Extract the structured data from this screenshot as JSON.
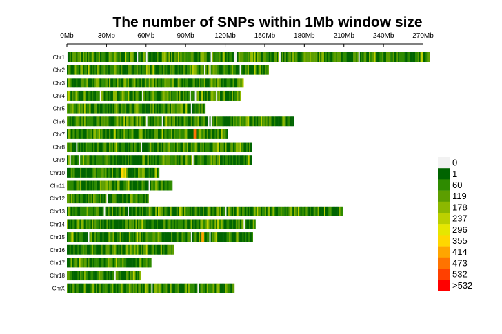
{
  "chart_data": {
    "type": "heatmap",
    "title": "The number of SNPs within 1Mb window size",
    "x_axis": {
      "unit": "Mb",
      "range": [
        0,
        280
      ],
      "ticks": [
        0,
        30,
        60,
        90,
        120,
        150,
        180,
        210,
        240,
        270
      ],
      "tick_labels": [
        "0Mb",
        "30Mb",
        "60Mb",
        "90Mb",
        "120Mb",
        "150Mb",
        "180Mb",
        "210Mb",
        "240Mb",
        "270Mb"
      ]
    },
    "chromosomes": [
      {
        "name": "Chr1",
        "length_mb": 275,
        "hotspots_mb": [
          268,
          269
        ],
        "peak_level": 5
      },
      {
        "name": "Chr2",
        "length_mb": 153,
        "hotspots_mb": [],
        "peak_level": 3
      },
      {
        "name": "Chr3",
        "length_mb": 134,
        "hotspots_mb": [],
        "peak_level": 3
      },
      {
        "name": "Chr4",
        "length_mb": 132,
        "hotspots_mb": [],
        "peak_level": 3
      },
      {
        "name": "Chr5",
        "length_mb": 105,
        "hotspots_mb": [
          79
        ],
        "peak_level": 4
      },
      {
        "name": "Chr6",
        "length_mb": 172,
        "hotspots_mb": [],
        "peak_level": 3
      },
      {
        "name": "Chr7",
        "length_mb": 122,
        "hotspots_mb": [
          96,
          97
        ],
        "peak_level": 9
      },
      {
        "name": "Chr8",
        "length_mb": 140,
        "hotspots_mb": [],
        "peak_level": 3
      },
      {
        "name": "Chr9",
        "length_mb": 140,
        "hotspots_mb": [],
        "peak_level": 3
      },
      {
        "name": "Chr10",
        "length_mb": 70,
        "hotspots_mb": [
          41,
          42,
          44
        ],
        "peak_level": 7
      },
      {
        "name": "Chr11",
        "length_mb": 80,
        "hotspots_mb": [],
        "peak_level": 3
      },
      {
        "name": "Chr12",
        "length_mb": 62,
        "hotspots_mb": [],
        "peak_level": 3
      },
      {
        "name": "Chr13",
        "length_mb": 209,
        "hotspots_mb": [],
        "peak_level": 3
      },
      {
        "name": "Chr14",
        "length_mb": 143,
        "hotspots_mb": [],
        "peak_level": 3
      },
      {
        "name": "Chr15",
        "length_mb": 141,
        "hotspots_mb": [
          102,
          103
        ],
        "peak_level": 8
      },
      {
        "name": "Chr16",
        "length_mb": 81,
        "hotspots_mb": [],
        "peak_level": 4
      },
      {
        "name": "Chr17",
        "length_mb": 64,
        "hotspots_mb": [],
        "peak_level": 3
      },
      {
        "name": "Chr18",
        "length_mb": 56,
        "hotspots_mb": [],
        "peak_level": 3
      },
      {
        "name": "ChrX",
        "length_mb": 127,
        "hotspots_mb": [],
        "peak_level": 3
      }
    ],
    "legend": {
      "position": "right",
      "labels": [
        "0",
        "1",
        "60",
        "119",
        "178",
        "237",
        "296",
        "355",
        "414",
        "473",
        "532",
        ">532"
      ],
      "colors": [
        "#f2f2f2",
        "#006400",
        "#2e8b00",
        "#5c9e00",
        "#8cb800",
        "#bcd000",
        "#e6e600",
        "#ffd700",
        "#ffa500",
        "#ff7300",
        "#ff4000",
        "#ff0000"
      ]
    }
  }
}
